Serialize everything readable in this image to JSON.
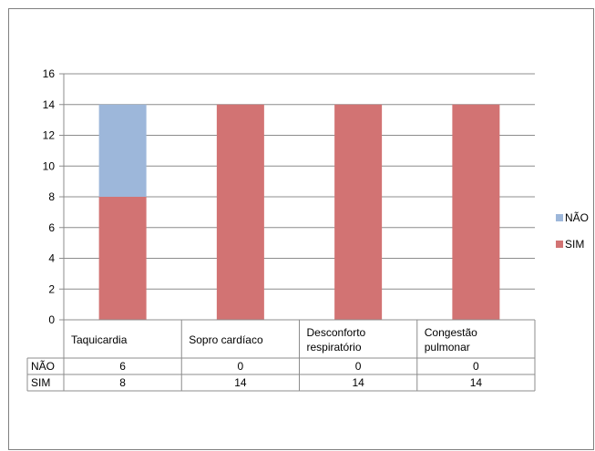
{
  "chart_data": {
    "type": "bar",
    "stacked": true,
    "categories": [
      "Taquicardia",
      "Sopro  cardíaco",
      "Desconforto respiratório",
      "Congestão pulmonar"
    ],
    "category_lines": [
      [
        "Taquicardia"
      ],
      [
        "Sopro  cardíaco"
      ],
      [
        "Desconforto",
        "respiratório"
      ],
      [
        "Congestão",
        "pulmonar"
      ]
    ],
    "series": [
      {
        "name": "SIM",
        "values": [
          8,
          14,
          14,
          14
        ],
        "color": "#D27373"
      },
      {
        "name": "NÃO",
        "values": [
          6,
          0,
          0,
          0
        ],
        "color": "#9DB7DA"
      }
    ],
    "legend_order": [
      "NÃO",
      "SIM"
    ],
    "ylim": [
      0,
      16
    ],
    "yticks": [
      0,
      2,
      4,
      6,
      8,
      10,
      12,
      14,
      16
    ],
    "grid": true,
    "legend_position": "right",
    "data_table": true,
    "gridline_color": "#8C8C8C",
    "axis_color": "#8C8C8C"
  }
}
